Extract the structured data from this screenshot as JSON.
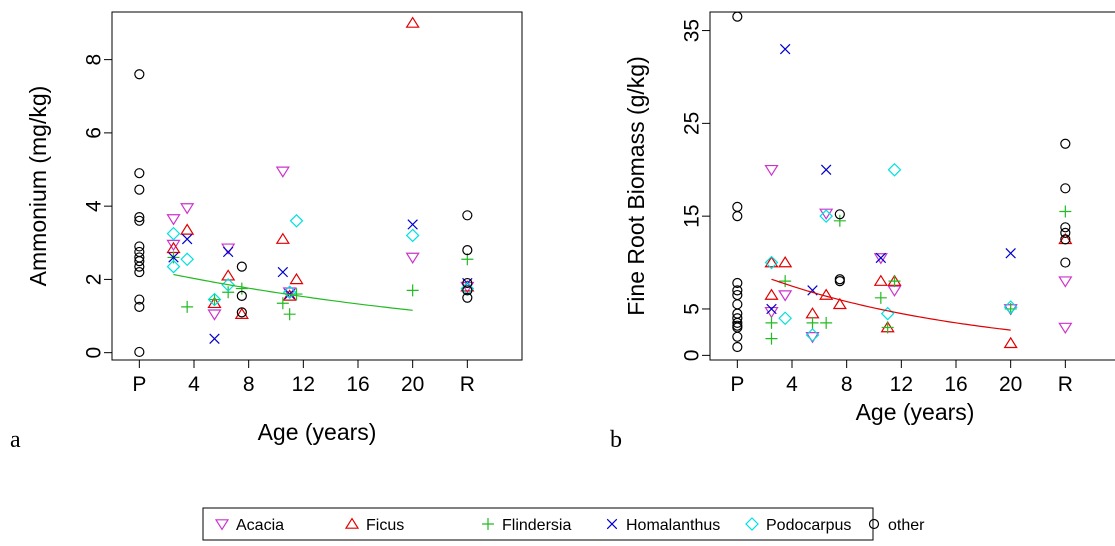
{
  "colors": {
    "Acacia": "#cc33cc",
    "Ficus": "#e00000",
    "Flindersia": "#22bb22",
    "Homalanthus": "#0000cc",
    "Podocarpus": "#00e0e0",
    "other": "#000000"
  },
  "legend": {
    "items": [
      {
        "name": "Acacia",
        "symbol": "triangle-down-icon"
      },
      {
        "name": "Ficus",
        "symbol": "triangle-up-icon"
      },
      {
        "name": "Flindersia",
        "symbol": "plus-icon"
      },
      {
        "name": "Homalanthus",
        "symbol": "cross-icon"
      },
      {
        "name": "Podocarpus",
        "symbol": "diamond-icon"
      },
      {
        "name": "other",
        "symbol": "circle-icon"
      }
    ]
  },
  "chart_data": [
    {
      "type": "scatter",
      "panel_label": "a",
      "xlabel": "Age (years)",
      "ylabel": "Ammonium (mg/kg)",
      "xlim": [
        -2,
        28
      ],
      "ylim": [
        -0.2,
        9.3
      ],
      "x_ticks": [
        {
          "v": 0,
          "label": "P"
        },
        {
          "v": 4,
          "label": "4"
        },
        {
          "v": 8,
          "label": "8"
        },
        {
          "v": 12,
          "label": "12"
        },
        {
          "v": 16,
          "label": "16"
        },
        {
          "v": 20,
          "label": "20"
        },
        {
          "v": 24,
          "label": "R"
        }
      ],
      "y_ticks": [
        {
          "v": 0,
          "label": "0"
        },
        {
          "v": 2,
          "label": "2"
        },
        {
          "v": 4,
          "label": "4"
        },
        {
          "v": 6,
          "label": "6"
        },
        {
          "v": 8,
          "label": "8"
        }
      ],
      "series": [
        {
          "name": "Acacia",
          "points": [
            [
              2.5,
              3.65
            ],
            [
              2.5,
              2.95
            ],
            [
              3.5,
              3.95
            ],
            [
              5.5,
              1.05
            ],
            [
              6.5,
              2.85
            ],
            [
              10.5,
              4.95
            ],
            [
              11,
              1.65
            ],
            [
              20,
              2.6
            ],
            [
              24,
              1.8
            ]
          ]
        },
        {
          "name": "Ficus",
          "points": [
            [
              2.5,
              2.85
            ],
            [
              3.5,
              3.35
            ],
            [
              5.5,
              1.35
            ],
            [
              6.5,
              2.1
            ],
            [
              7.5,
              1.05
            ],
            [
              10.5,
              3.1
            ],
            [
              11,
              1.55
            ],
            [
              11.5,
              2.0
            ],
            [
              20,
              9.0
            ],
            [
              24,
              1.8
            ]
          ]
        },
        {
          "name": "Flindersia",
          "points": [
            [
              2.5,
              2.6
            ],
            [
              3.5,
              1.25
            ],
            [
              5.5,
              1.45
            ],
            [
              6.5,
              1.65
            ],
            [
              7.5,
              1.75
            ],
            [
              10.5,
              1.35
            ],
            [
              11,
              1.05
            ],
            [
              11.5,
              1.6
            ],
            [
              20,
              1.7
            ],
            [
              24,
              2.55
            ]
          ]
        },
        {
          "name": "Homalanthus",
          "points": [
            [
              2.5,
              2.6
            ],
            [
              3.5,
              3.1
            ],
            [
              5.5,
              0.38
            ],
            [
              6.5,
              2.75
            ],
            [
              10.5,
              2.2
            ],
            [
              11,
              1.6
            ],
            [
              20,
              3.5
            ],
            [
              24,
              1.9
            ]
          ]
        },
        {
          "name": "Podocarpus",
          "points": [
            [
              2.5,
              3.25
            ],
            [
              2.5,
              2.35
            ],
            [
              3.5,
              2.55
            ],
            [
              5.5,
              1.45
            ],
            [
              6.5,
              1.85
            ],
            [
              11,
              1.65
            ],
            [
              11.5,
              3.6
            ],
            [
              20,
              3.2
            ],
            [
              24,
              1.75
            ]
          ]
        },
        {
          "name": "other",
          "points": [
            [
              0,
              7.6
            ],
            [
              0,
              4.9
            ],
            [
              0,
              4.45
            ],
            [
              0,
              3.7
            ],
            [
              0,
              3.6
            ],
            [
              0,
              2.9
            ],
            [
              0,
              2.75
            ],
            [
              0,
              2.6
            ],
            [
              0,
              2.5
            ],
            [
              0,
              2.35
            ],
            [
              0,
              2.2
            ],
            [
              0,
              1.45
            ],
            [
              0,
              1.25
            ],
            [
              0,
              0.02
            ],
            [
              7.5,
              2.35
            ],
            [
              7.5,
              1.55
            ],
            [
              7.5,
              1.1
            ],
            [
              24,
              3.75
            ],
            [
              24,
              2.8
            ],
            [
              24,
              1.9
            ],
            [
              24,
              1.7
            ],
            [
              24,
              1.5
            ]
          ]
        }
      ],
      "fit": {
        "color_key": "Flindersia",
        "x_range": [
          2.5,
          20
        ],
        "a": 2.33,
        "b": -0.035
      }
    },
    {
      "type": "scatter",
      "panel_label": "b",
      "xlabel": "Age (years)",
      "ylabel": "Fine Root Biomass (g/kg)",
      "xlim": [
        -2,
        28
      ],
      "ylim": [
        -0.5,
        37
      ],
      "x_ticks": [
        {
          "v": 0,
          "label": "P"
        },
        {
          "v": 4,
          "label": "4"
        },
        {
          "v": 8,
          "label": "8"
        },
        {
          "v": 12,
          "label": "12"
        },
        {
          "v": 16,
          "label": "16"
        },
        {
          "v": 20,
          "label": "20"
        },
        {
          "v": 24,
          "label": "R"
        }
      ],
      "y_ticks": [
        {
          "v": 0,
          "label": "0"
        },
        {
          "v": 5,
          "label": "5"
        },
        {
          "v": 15,
          "label": "15"
        },
        {
          "v": 25,
          "label": "25"
        },
        {
          "v": 35,
          "label": "35"
        }
      ],
      "series": [
        {
          "name": "Acacia",
          "points": [
            [
              2.5,
              20.0
            ],
            [
              2.5,
              4.7
            ],
            [
              3.5,
              6.5
            ],
            [
              5.5,
              2.0
            ],
            [
              6.5,
              15.3
            ],
            [
              10.5,
              10.5
            ],
            [
              11.5,
              7.0
            ],
            [
              20,
              5.0
            ],
            [
              24,
              8.0
            ],
            [
              24,
              3.0
            ]
          ]
        },
        {
          "name": "Ficus",
          "points": [
            [
              2.5,
              10.0
            ],
            [
              2.5,
              6.5
            ],
            [
              3.5,
              10.0
            ],
            [
              5.5,
              4.5
            ],
            [
              6.5,
              6.5
            ],
            [
              7.5,
              5.5
            ],
            [
              10.5,
              8.0
            ],
            [
              11,
              3.0
            ],
            [
              11.5,
              8.0
            ],
            [
              20,
              1.3
            ],
            [
              24,
              12.5
            ]
          ]
        },
        {
          "name": "Flindersia",
          "points": [
            [
              2.5,
              3.5
            ],
            [
              2.5,
              1.8
            ],
            [
              3.5,
              8.0
            ],
            [
              5.5,
              3.5
            ],
            [
              6.5,
              3.5
            ],
            [
              7.5,
              14.5
            ],
            [
              10.5,
              6.2
            ],
            [
              11,
              3.0
            ],
            [
              11.5,
              8.0
            ],
            [
              20,
              5.0
            ],
            [
              24,
              15.5
            ]
          ]
        },
        {
          "name": "Homalanthus",
          "points": [
            [
              2.5,
              5.0
            ],
            [
              3.5,
              33.0
            ],
            [
              5.5,
              7.0
            ],
            [
              6.5,
              20.0
            ],
            [
              10.5,
              10.5
            ],
            [
              20,
              11.0
            ]
          ]
        },
        {
          "name": "Podocarpus",
          "points": [
            [
              2.5,
              10.0
            ],
            [
              3.5,
              4.0
            ],
            [
              5.5,
              2.2
            ],
            [
              6.5,
              15.0
            ],
            [
              11,
              4.5
            ],
            [
              11.5,
              20.0
            ],
            [
              20,
              5.2
            ]
          ]
        },
        {
          "name": "other",
          "points": [
            [
              0,
              36.5
            ],
            [
              0,
              16.0
            ],
            [
              0,
              15.0
            ],
            [
              0,
              7.8
            ],
            [
              0,
              7.0
            ],
            [
              0,
              6.5
            ],
            [
              0,
              5.5
            ],
            [
              0,
              4.5
            ],
            [
              0,
              4.0
            ],
            [
              0,
              3.5
            ],
            [
              0,
              3.2
            ],
            [
              0,
              3.0
            ],
            [
              0,
              2.0
            ],
            [
              0,
              0.9
            ],
            [
              7.5,
              15.2
            ],
            [
              7.5,
              8.2
            ],
            [
              7.5,
              8.0
            ],
            [
              24,
              22.8
            ],
            [
              24,
              18.0
            ],
            [
              24,
              13.8
            ],
            [
              24,
              13.2
            ],
            [
              24,
              12.5
            ],
            [
              24,
              10.0
            ]
          ]
        }
      ],
      "fit": {
        "color_key": "Ficus",
        "x_range": [
          2.5,
          20
        ],
        "a": 9.6,
        "b": -0.063
      }
    }
  ]
}
